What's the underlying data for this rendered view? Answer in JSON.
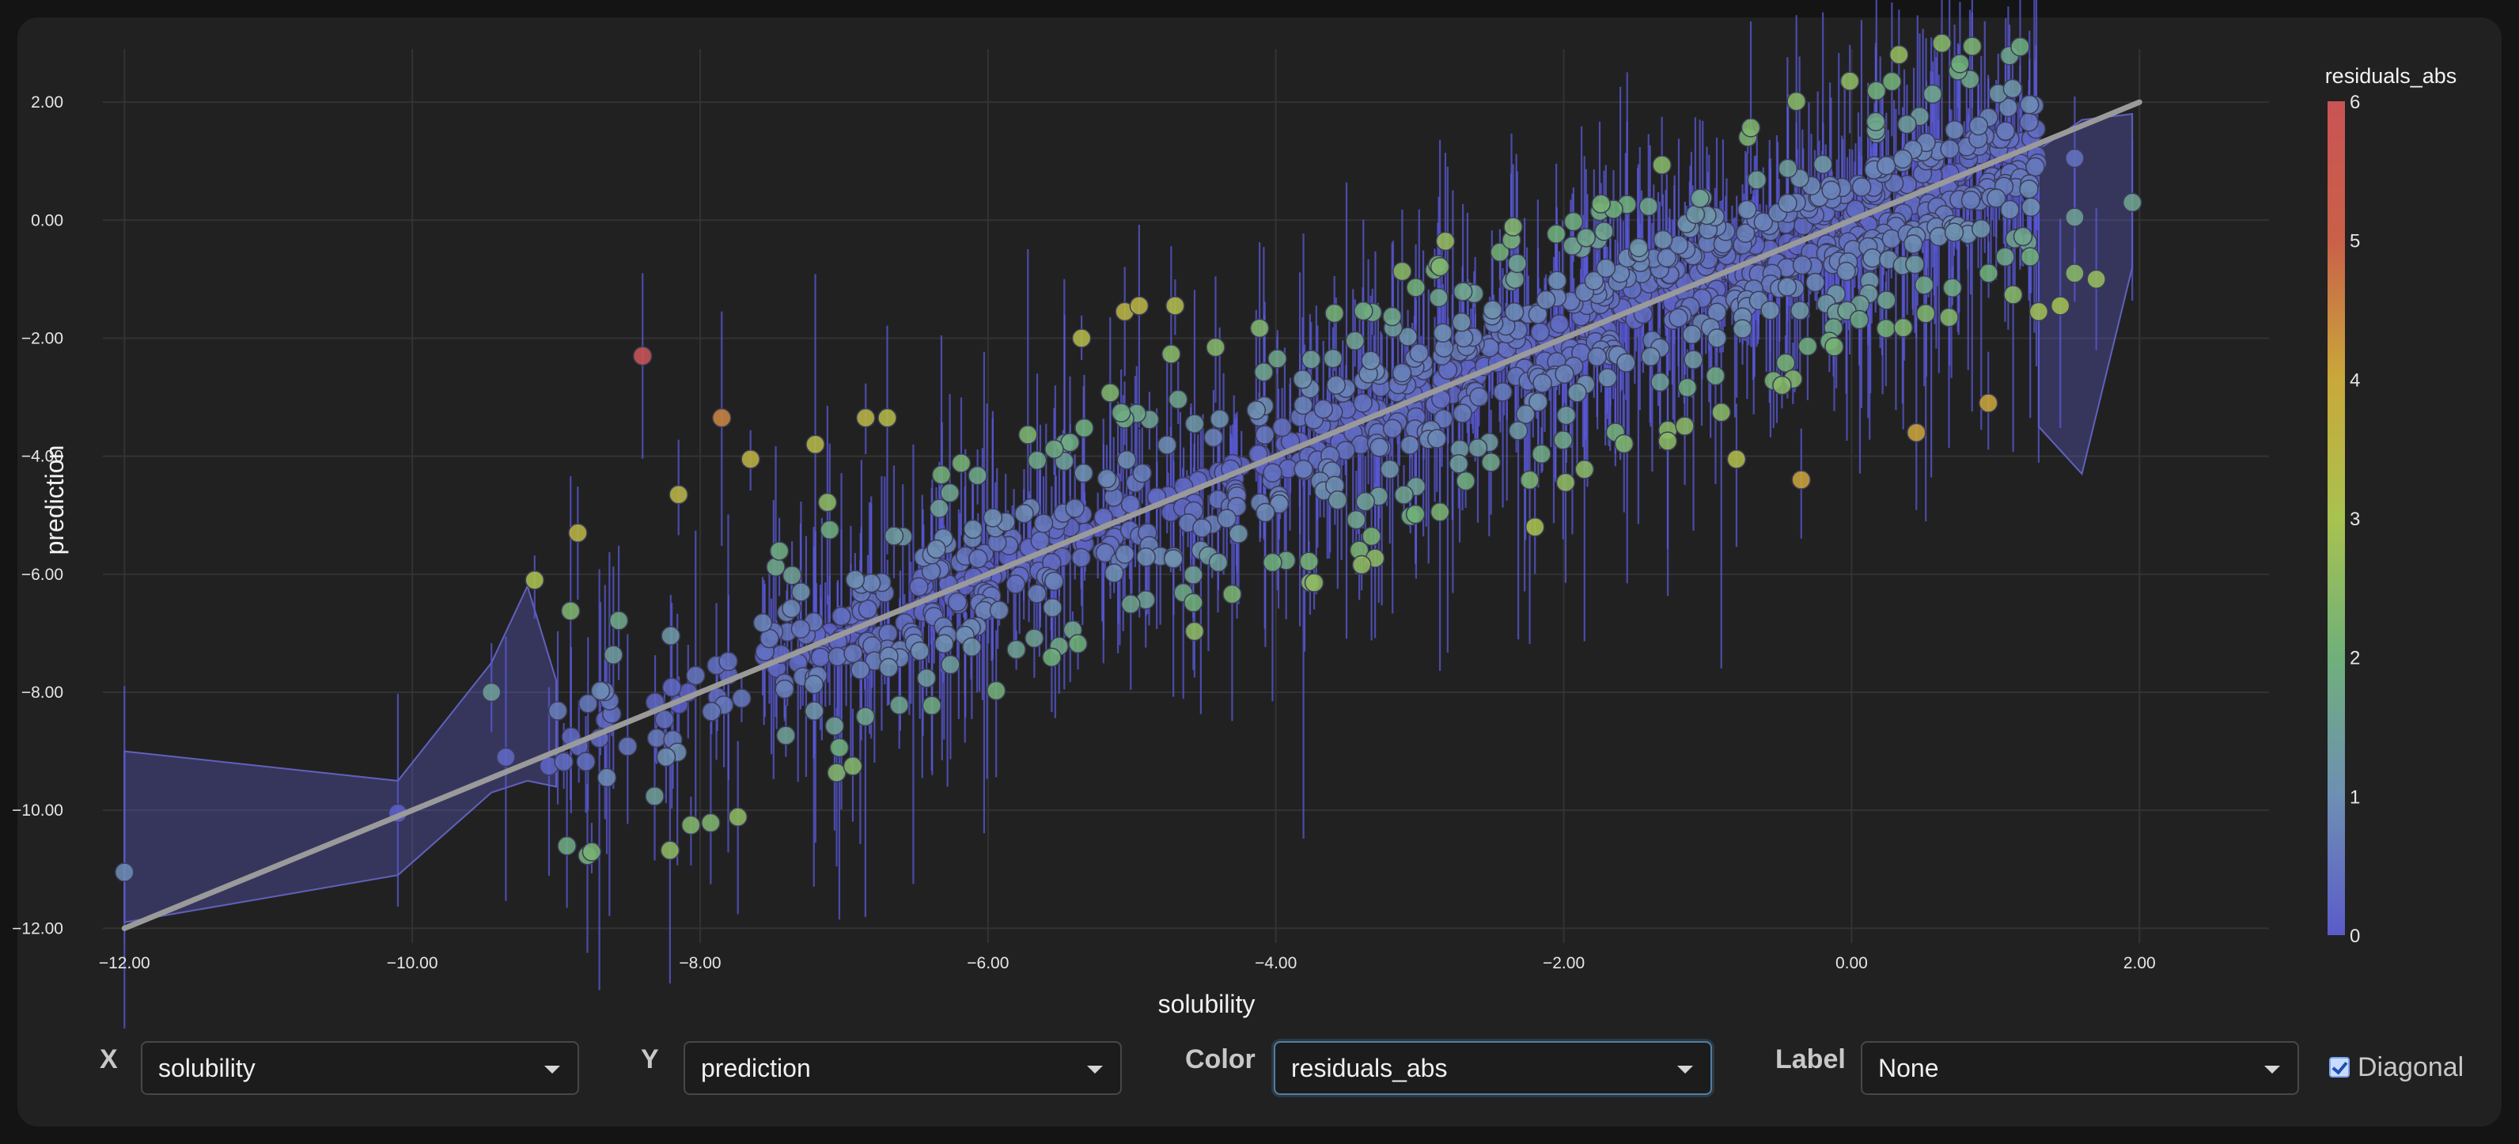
{
  "chart_data": {
    "type": "scatter",
    "xlabel": "solubility",
    "ylabel": "prediction",
    "xlim": [
      -12.15,
      2.9
    ],
    "ylim": [
      -12.25,
      2.9
    ],
    "x_ticks": [
      -12,
      -10,
      -8,
      -6,
      -4,
      -2,
      0,
      2
    ],
    "x_tick_labels": [
      "−12.00",
      "−10.00",
      "−8.00",
      "−6.00",
      "−4.00",
      "−2.00",
      "0.00",
      "2.00"
    ],
    "y_ticks": [
      -12,
      -10,
      -8,
      -6,
      -4,
      -2,
      0,
      2
    ],
    "y_tick_labels": [
      "−12.00",
      "−10.00",
      "−8.00",
      "−6.00",
      "−4.00",
      "−2.00",
      "0.00",
      "2.00"
    ],
    "grid": true,
    "diagonal": [
      [
        -12,
        -12
      ],
      [
        2,
        2
      ]
    ],
    "colorbar": {
      "title": "residuals_abs",
      "range": [
        0,
        6
      ],
      "ticks": [
        "0",
        "1",
        "2",
        "3",
        "4",
        "5",
        "6"
      ],
      "colors": [
        "#5b5bc9",
        "#6e8fb3",
        "#6fb07a",
        "#a8c24f",
        "#c9a83a",
        "#c96048",
        "#c95454"
      ]
    },
    "point_count": 1100,
    "points": [
      {
        "x": -12.0,
        "y": -11.05,
        "c": 0.95
      },
      {
        "x": -10.1,
        "y": -10.05,
        "c": 0.05
      },
      {
        "x": -9.45,
        "y": -8.0,
        "c": 1.45
      },
      {
        "x": -9.35,
        "y": -9.1,
        "c": 0.25
      },
      {
        "x": -9.15,
        "y": -6.1,
        "c": 3.05
      },
      {
        "x": -9.05,
        "y": -9.25,
        "c": 0.2
      },
      {
        "x": -8.85,
        "y": -5.3,
        "c": 3.55
      },
      {
        "x": -8.4,
        "y": -2.3,
        "c": 6.1
      },
      {
        "x": -8.15,
        "y": -4.65,
        "c": 3.5
      },
      {
        "x": -7.85,
        "y": -3.35,
        "c": 4.5
      },
      {
        "x": -7.65,
        "y": -4.05,
        "c": 3.6
      },
      {
        "x": -7.2,
        "y": -3.8,
        "c": 3.4
      },
      {
        "x": -6.85,
        "y": -3.35,
        "c": 3.5
      },
      {
        "x": -6.7,
        "y": -3.35,
        "c": 3.35
      },
      {
        "x": -5.05,
        "y": -1.55,
        "c": 3.5
      },
      {
        "x": -4.95,
        "y": -1.45,
        "c": 3.5
      },
      {
        "x": -5.35,
        "y": -2.0,
        "c": 3.35
      },
      {
        "x": -4.7,
        "y": -1.45,
        "c": 3.25
      },
      {
        "x": -4.4,
        "y": -5.8,
        "c": 1.4
      },
      {
        "x": -2.2,
        "y": -5.2,
        "c": 3.0
      },
      {
        "x": -0.8,
        "y": -4.05,
        "c": 3.25
      },
      {
        "x": -0.35,
        "y": -4.4,
        "c": 4.05
      },
      {
        "x": 0.45,
        "y": -3.6,
        "c": 4.05
      },
      {
        "x": 0.95,
        "y": -3.1,
        "c": 4.05
      },
      {
        "x": 1.3,
        "y": -1.55,
        "c": 2.85
      },
      {
        "x": 1.45,
        "y": -1.45,
        "c": 2.9
      },
      {
        "x": 1.55,
        "y": 0.05,
        "c": 1.55
      },
      {
        "x": 1.55,
        "y": 1.05,
        "c": 0.45
      },
      {
        "x": 1.55,
        "y": -0.9,
        "c": 2.45
      },
      {
        "x": 1.7,
        "y": -1.0,
        "c": 2.7
      },
      {
        "x": 1.95,
        "y": 0.3,
        "c": 1.65
      },
      {
        "x": -1.75,
        "y": 0.15,
        "c": 1.95
      }
    ],
    "bands": [
      {
        "upper": [
          [
            -12,
            -9.0
          ],
          [
            -10.1,
            -9.5
          ],
          [
            -9.45,
            -7.5
          ],
          [
            -9.2,
            -6.2
          ],
          [
            -9.0,
            -7.8
          ]
        ],
        "lower": [
          [
            -12,
            -11.9
          ],
          [
            -10.1,
            -11.1
          ],
          [
            -9.45,
            -9.7
          ],
          [
            -9.2,
            -9.5
          ],
          [
            -9.0,
            -9.6
          ]
        ]
      },
      {
        "upper": [
          [
            1.3,
            1.2
          ],
          [
            1.6,
            1.7
          ],
          [
            1.95,
            1.8
          ]
        ],
        "lower": [
          [
            1.3,
            -3.5
          ],
          [
            1.6,
            -4.3
          ],
          [
            1.95,
            -0.8
          ]
        ]
      }
    ]
  },
  "controls": {
    "x": {
      "label": "X",
      "value": "solubility"
    },
    "y": {
      "label": "Y",
      "value": "prediction"
    },
    "color": {
      "label": "Color",
      "value": "residuals_abs"
    },
    "label": {
      "label": "Label",
      "value": "None"
    },
    "diagonal": {
      "label": "Diagonal",
      "checked": true
    }
  }
}
